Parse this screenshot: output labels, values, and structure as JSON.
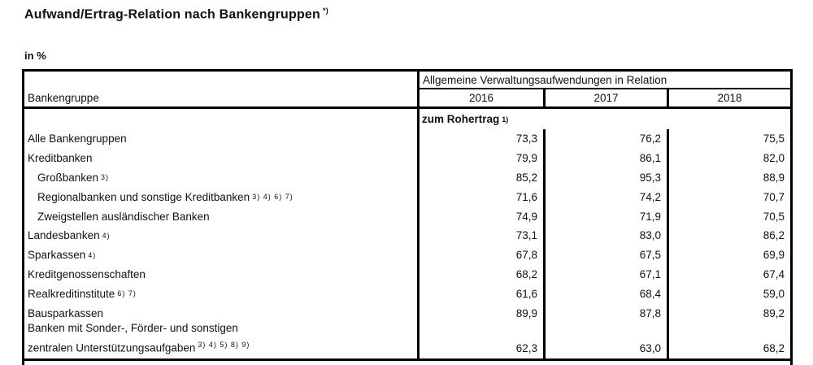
{
  "title": "Aufwand/Ertrag-Relation nach Bankengruppen",
  "title_note": "*)",
  "unit_label": "in %",
  "table": {
    "col_header_left": "Bankengruppe",
    "group_header": "Allgemeine Verwaltungsaufwendungen in Relation",
    "years": [
      "2016",
      "2017",
      "2018"
    ],
    "subheader": "zum Rohertrag",
    "subheader_note": "1)",
    "border_color": "#000000",
    "text_color": "#111111",
    "rows": [
      {
        "label": "Alle Bankengruppen",
        "note": "",
        "indent": false,
        "values": [
          "73,3",
          "76,2",
          "75,5"
        ]
      },
      {
        "label": "Kreditbanken",
        "note": "",
        "indent": false,
        "values": [
          "79,9",
          "86,1",
          "82,0"
        ]
      },
      {
        "label": "Großbanken",
        "note": "3)",
        "indent": true,
        "values": [
          "85,2",
          "95,3",
          "88,9"
        ]
      },
      {
        "label": "Regionalbanken und sonstige Kreditbanken",
        "note": "3) 4) 6) 7)",
        "indent": true,
        "values": [
          "71,6",
          "74,2",
          "70,7"
        ]
      },
      {
        "label": "Zweigstellen ausländischer Banken",
        "note": "",
        "indent": true,
        "values": [
          "74,9",
          "71,9",
          "70,5"
        ]
      },
      {
        "label": "Landesbanken",
        "note": "4)",
        "indent": false,
        "values": [
          "73,1",
          "83,0",
          "86,2"
        ]
      },
      {
        "label": "Sparkassen",
        "note": "4)",
        "indent": false,
        "values": [
          "67,8",
          "67,5",
          "69,9"
        ]
      },
      {
        "label": "Kreditgenossenschaften",
        "note": "",
        "indent": false,
        "values": [
          "68,2",
          "67,1",
          "67,4"
        ]
      },
      {
        "label": "Realkreditinstitute",
        "note": "6) 7)",
        "indent": false,
        "values": [
          "61,6",
          "68,4",
          "59,0"
        ]
      },
      {
        "label": "Bausparkassen",
        "note": "",
        "indent": false,
        "values": [
          "89,9",
          "87,8",
          "89,2"
        ]
      },
      {
        "label_line1": "Banken mit Sonder-, Förder- und sonstigen",
        "label_line2": "zentralen Unterstützungsaufgaben",
        "note": "3) 4) 5) 8) 9)",
        "indent": false,
        "values": [
          "62,3",
          "63,0",
          "68,2"
        ]
      }
    ]
  }
}
